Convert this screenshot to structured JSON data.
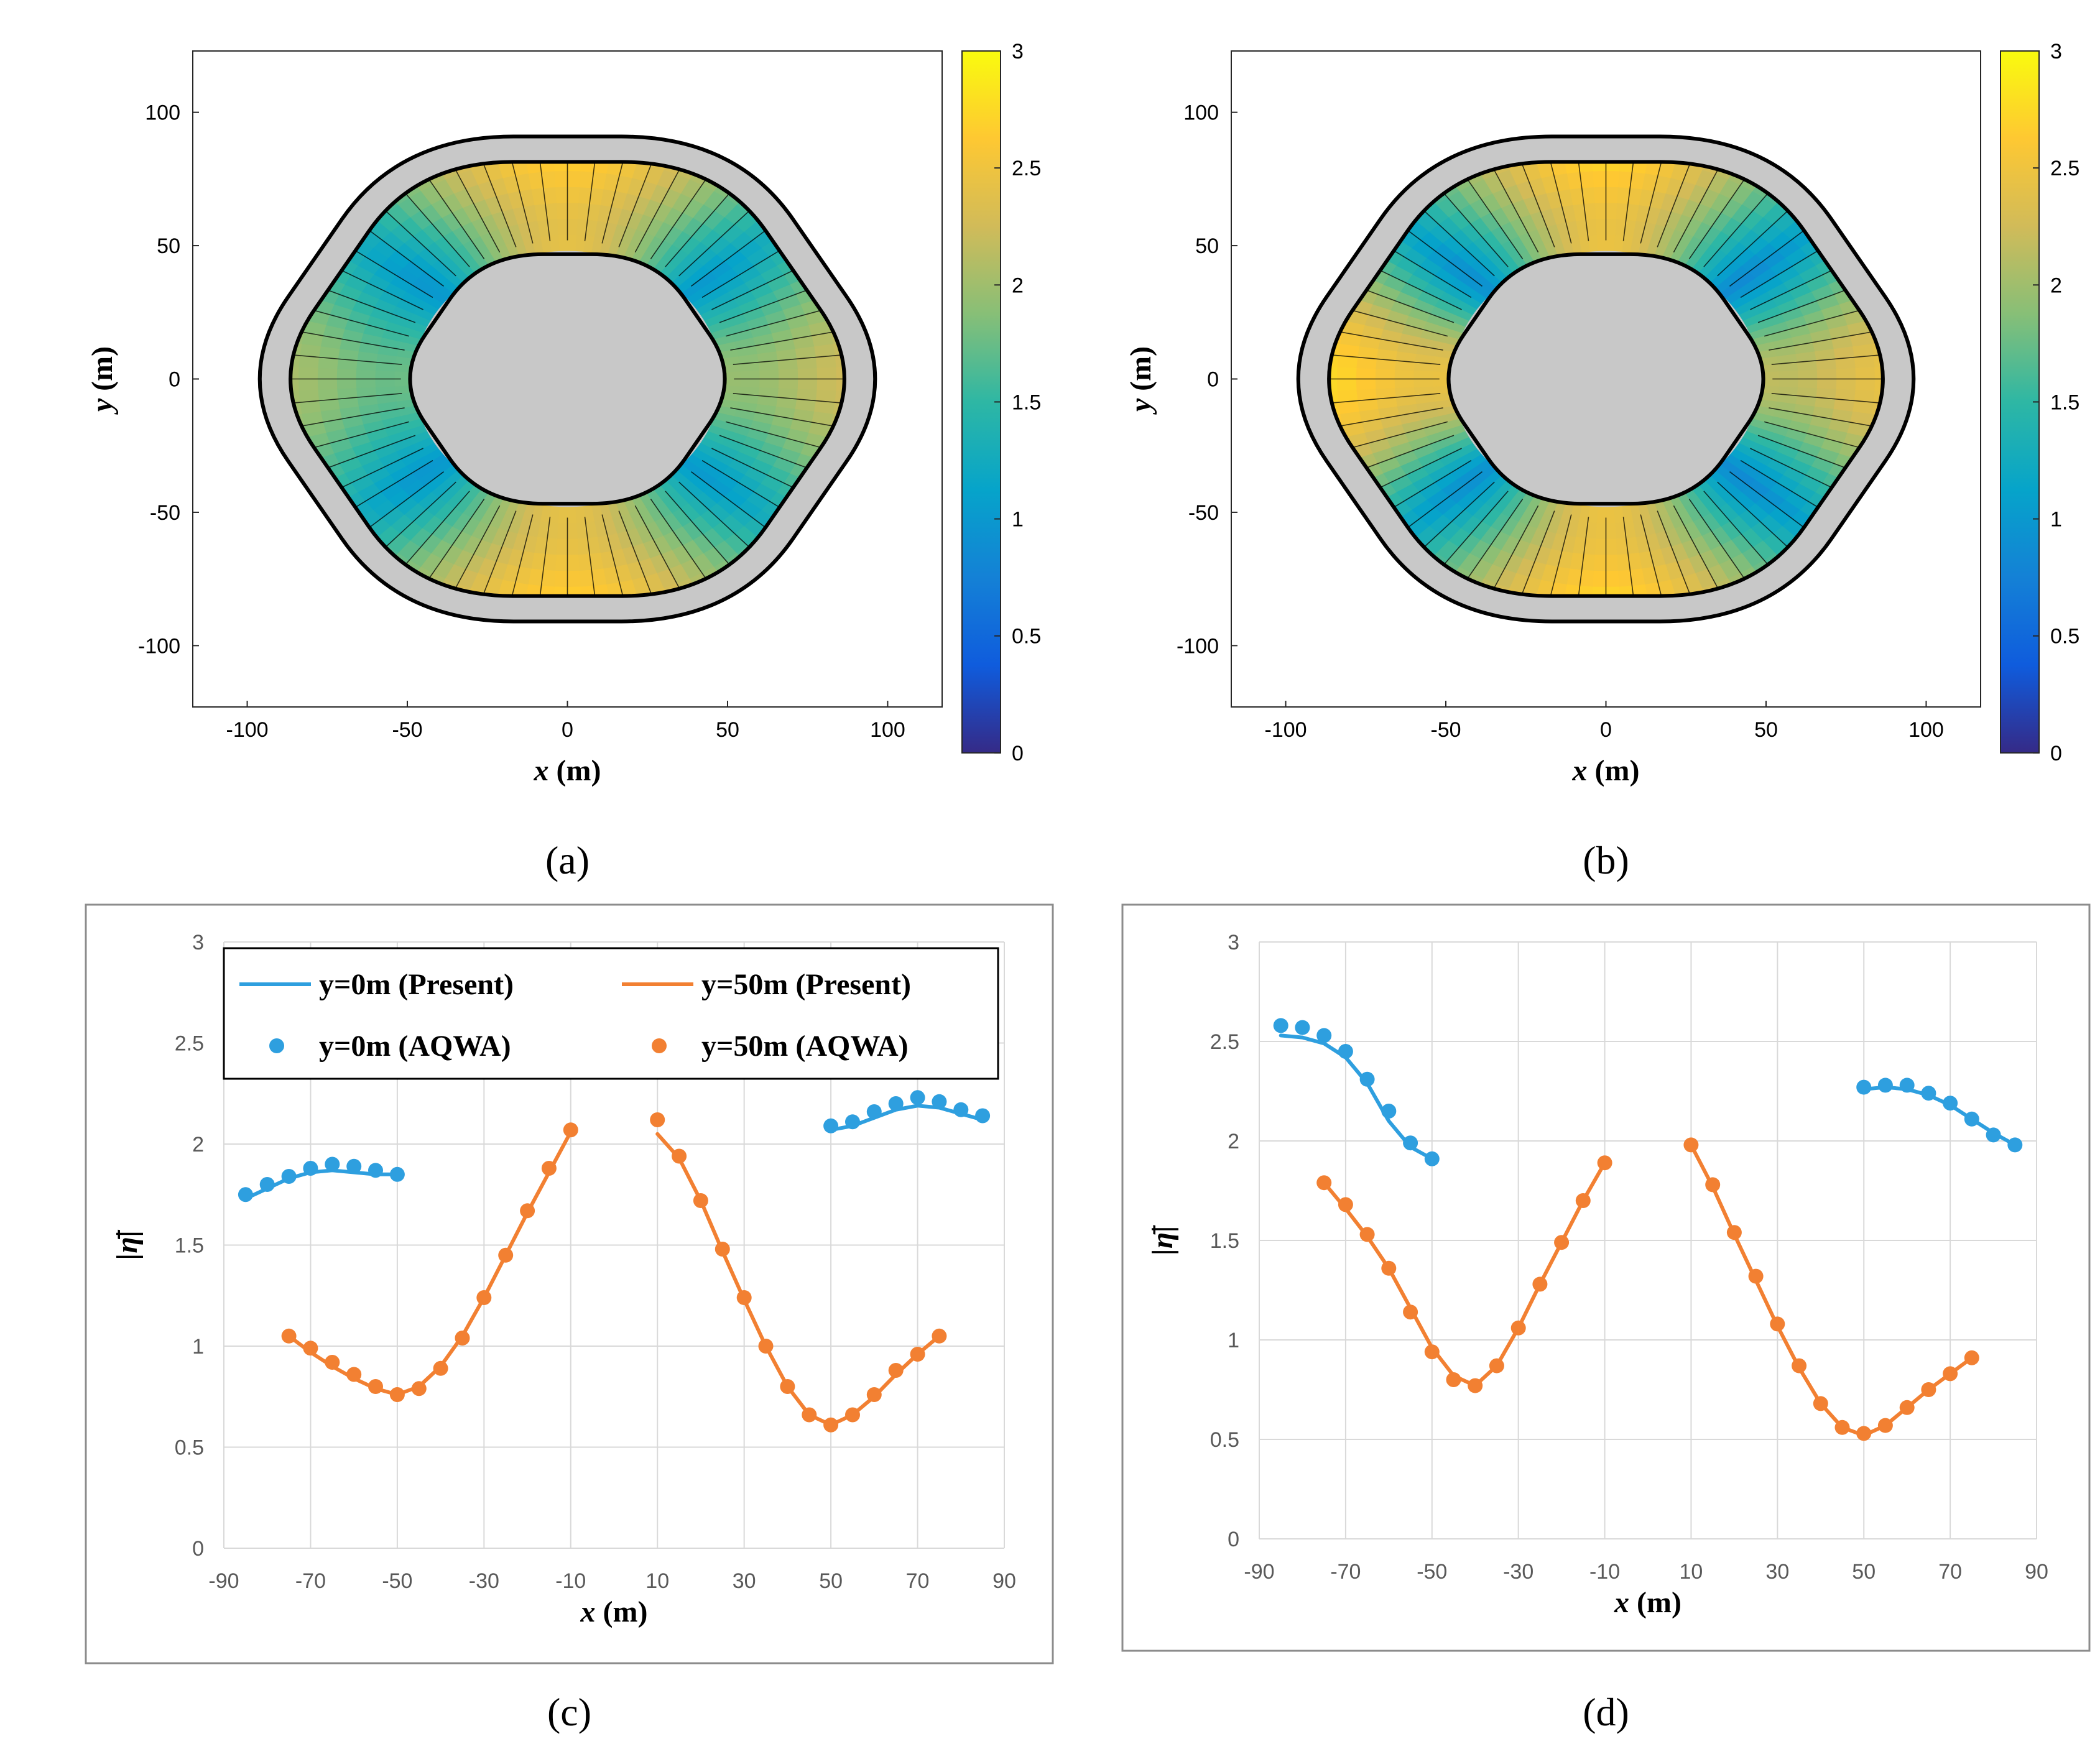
{
  "chart_data": [
    {
      "panel": "a",
      "type": "heatmap",
      "caption": "(a)",
      "xlabel_var": "x",
      "xlabel_unit": " (m)",
      "ylabel_var": "y",
      "ylabel_unit": " (m)",
      "xlim": [
        -117,
        117
      ],
      "ylim": [
        -123,
        123
      ],
      "xticks": [
        "-100",
        "-50",
        "0",
        "50",
        "100"
      ],
      "yticks": [
        "100",
        "50",
        "0",
        "-50",
        "-100"
      ],
      "colorbar": {
        "range": [
          0,
          3
        ],
        "ticks": [
          "3",
          "2.5",
          "2",
          "1.5",
          "1",
          "0.5",
          "0"
        ]
      },
      "field": {
        "x0_level": 1.9,
        "x180_level": 2.1,
        "y_peak_level": 2.55,
        "trough_level": 0.65,
        "center_peak_level": 2.3
      }
    },
    {
      "panel": "b",
      "type": "heatmap",
      "caption": "(b)",
      "xlabel_var": "x",
      "xlabel_unit": " (m)",
      "ylabel_var": "y",
      "ylabel_unit": " (m)",
      "xlim": [
        -117,
        117
      ],
      "ylim": [
        -123,
        123
      ],
      "xticks": [
        "-100",
        "-50",
        "0",
        "50",
        "100"
      ],
      "yticks": [
        "100",
        "50",
        "0",
        "-50",
        "-100"
      ],
      "colorbar": {
        "range": [
          0,
          3
        ],
        "ticks": [
          "3",
          "2.5",
          "2",
          "1.5",
          "1",
          "0.5",
          "0"
        ]
      },
      "field": {
        "x0_level": 2.6,
        "x180_level": 2.3,
        "y_peak_level": 2.6,
        "trough_level": 0.35,
        "center_peak_level": 2.3
      }
    },
    {
      "panel": "c",
      "type": "line",
      "caption": "(c)",
      "xlabel_var": "x",
      "xlabel_unit": " (m)",
      "ylabel": "|η̄|",
      "xlim": [
        -90,
        90
      ],
      "ylim": [
        0,
        3
      ],
      "xticks": [
        "-90",
        "-70",
        "-50",
        "-30",
        "-10",
        "10",
        "30",
        "50",
        "70",
        "90"
      ],
      "yticks": [
        "3",
        "2.5",
        "2",
        "1.5",
        "1",
        "0.5",
        "0"
      ],
      "legend": {
        "labels": [
          "y=0m (Present)",
          "y=50m (Present)",
          "y=0m (AQWA)",
          "y=50m (AQWA)"
        ],
        "position": "top-left"
      },
      "series": [
        {
          "name": "y=0m (Present)",
          "style": "line",
          "color": "#2E9FDF",
          "x": [
            -85,
            -80,
            -75,
            -70,
            -65,
            -60,
            -55,
            -50
          ],
          "y": [
            1.73,
            1.78,
            1.83,
            1.86,
            1.87,
            1.86,
            1.85,
            1.85
          ]
        },
        {
          "name": "y=0m (Present)",
          "style": "line",
          "color": "#2E9FDF",
          "x": [
            50,
            55,
            60,
            65,
            70,
            75,
            80,
            85
          ],
          "y": [
            2.07,
            2.09,
            2.13,
            2.17,
            2.19,
            2.18,
            2.15,
            2.12
          ]
        },
        {
          "name": "y=0m (AQWA)",
          "style": "markers",
          "color": "#2E9FDF",
          "x": [
            -85,
            -80,
            -75,
            -70,
            -65,
            -60,
            -55,
            -50
          ],
          "y": [
            1.75,
            1.8,
            1.84,
            1.88,
            1.9,
            1.89,
            1.87,
            1.85
          ]
        },
        {
          "name": "y=0m (AQWA)",
          "style": "markers",
          "color": "#2E9FDF",
          "x": [
            50,
            55,
            60,
            65,
            70,
            75,
            80,
            85
          ],
          "y": [
            2.09,
            2.11,
            2.16,
            2.2,
            2.23,
            2.21,
            2.17,
            2.14
          ]
        },
        {
          "name": "y=50m (Present)",
          "style": "line",
          "color": "#F28032",
          "x": [
            -75,
            -70,
            -65,
            -60,
            -55,
            -50,
            -45,
            -40,
            -35,
            -30,
            -25,
            -20,
            -15,
            -10
          ],
          "y": [
            1.05,
            0.97,
            0.9,
            0.84,
            0.79,
            0.76,
            0.8,
            0.9,
            1.05,
            1.24,
            1.45,
            1.66,
            1.86,
            2.06
          ]
        },
        {
          "name": "y=50m (Present)",
          "style": "line",
          "color": "#F28032",
          "x": [
            10,
            15,
            20,
            25,
            30,
            35,
            40,
            45,
            50,
            55,
            60,
            65,
            70,
            75
          ],
          "y": [
            2.05,
            1.93,
            1.72,
            1.47,
            1.23,
            1.0,
            0.8,
            0.66,
            0.61,
            0.66,
            0.75,
            0.86,
            0.96,
            1.05
          ]
        },
        {
          "name": "y=50m (AQWA)",
          "style": "markers",
          "color": "#F28032",
          "x": [
            -75,
            -70,
            -65,
            -60,
            -55,
            -50,
            -45,
            -40,
            -35,
            -30,
            -25,
            -20,
            -15,
            -10
          ],
          "y": [
            1.05,
            0.99,
            0.92,
            0.86,
            0.8,
            0.76,
            0.79,
            0.89,
            1.04,
            1.24,
            1.45,
            1.67,
            1.88,
            2.07
          ]
        },
        {
          "name": "y=50m (AQWA)",
          "style": "markers",
          "color": "#F28032",
          "x": [
            10,
            15,
            20,
            25,
            30,
            35,
            40,
            45,
            50,
            55,
            60,
            65,
            70,
            75
          ],
          "y": [
            2.12,
            1.94,
            1.72,
            1.48,
            1.24,
            1.0,
            0.8,
            0.66,
            0.61,
            0.66,
            0.76,
            0.88,
            0.96,
            1.05
          ]
        }
      ]
    },
    {
      "panel": "d",
      "type": "line",
      "caption": "(d)",
      "xlabel_var": "x",
      "xlabel_unit": " (m)",
      "ylabel": "|η̄|",
      "xlim": [
        -90,
        90
      ],
      "ylim": [
        0,
        3
      ],
      "xticks": [
        "-90",
        "-70",
        "-50",
        "-30",
        "-10",
        "10",
        "30",
        "50",
        "70",
        "90"
      ],
      "yticks": [
        "3",
        "2.5",
        "2",
        "1.5",
        "1",
        "0.5",
        "0"
      ],
      "series": [
        {
          "name": "y=0m (Present)",
          "style": "line",
          "color": "#2E9FDF",
          "x": [
            -85,
            -80,
            -75,
            -70,
            -65,
            -60,
            -55,
            -50
          ],
          "y": [
            2.53,
            2.52,
            2.49,
            2.42,
            2.29,
            2.1,
            1.97,
            1.91
          ]
        },
        {
          "name": "y=0m (Present)",
          "style": "line",
          "color": "#2E9FDF",
          "x": [
            50,
            55,
            60,
            65,
            70,
            75,
            80,
            85
          ],
          "y": [
            2.26,
            2.27,
            2.26,
            2.23,
            2.18,
            2.11,
            2.04,
            1.98
          ]
        },
        {
          "name": "y=0m (AQWA)",
          "style": "markers",
          "color": "#2E9FDF",
          "x": [
            -85,
            -80,
            -75,
            -70,
            -65,
            -60,
            -55,
            -50
          ],
          "y": [
            2.58,
            2.57,
            2.53,
            2.45,
            2.31,
            2.15,
            1.99,
            1.91
          ]
        },
        {
          "name": "y=0m (AQWA)",
          "style": "markers",
          "color": "#2E9FDF",
          "x": [
            50,
            55,
            60,
            65,
            70,
            75,
            80,
            85
          ],
          "y": [
            2.27,
            2.28,
            2.28,
            2.24,
            2.19,
            2.11,
            2.03,
            1.98
          ]
        },
        {
          "name": "y=50m (Present)",
          "style": "line",
          "color": "#F28032",
          "x": [
            -75,
            -70,
            -65,
            -60,
            -55,
            -50,
            -45,
            -40,
            -35,
            -30,
            -25,
            -20,
            -15,
            -10
          ],
          "y": [
            1.79,
            1.66,
            1.52,
            1.36,
            1.16,
            0.96,
            0.82,
            0.77,
            0.87,
            1.06,
            1.28,
            1.49,
            1.7,
            1.89
          ]
        },
        {
          "name": "y=50m (Present)",
          "style": "line",
          "color": "#F28032",
          "x": [
            10,
            15,
            20,
            25,
            30,
            35,
            40,
            45,
            50,
            55,
            60,
            65,
            70,
            75
          ],
          "y": [
            1.98,
            1.77,
            1.53,
            1.3,
            1.07,
            0.86,
            0.68,
            0.56,
            0.52,
            0.57,
            0.66,
            0.75,
            0.83,
            0.91
          ]
        },
        {
          "name": "y=50m (AQWA)",
          "style": "markers",
          "color": "#F28032",
          "x": [
            -75,
            -70,
            -65,
            -60,
            -55,
            -50,
            -45,
            -40,
            -35,
            -30,
            -25,
            -20,
            -15,
            -10
          ],
          "y": [
            1.79,
            1.68,
            1.53,
            1.36,
            1.14,
            0.94,
            0.8,
            0.77,
            0.87,
            1.06,
            1.28,
            1.49,
            1.7,
            1.89
          ]
        },
        {
          "name": "y=50m (AQWA)",
          "style": "markers",
          "color": "#F28032",
          "x": [
            10,
            15,
            20,
            25,
            30,
            35,
            40,
            45,
            50,
            55,
            60,
            65,
            70,
            75
          ],
          "y": [
            1.98,
            1.78,
            1.54,
            1.32,
            1.08,
            0.87,
            0.68,
            0.56,
            0.53,
            0.57,
            0.66,
            0.75,
            0.83,
            0.91
          ]
        }
      ]
    }
  ]
}
